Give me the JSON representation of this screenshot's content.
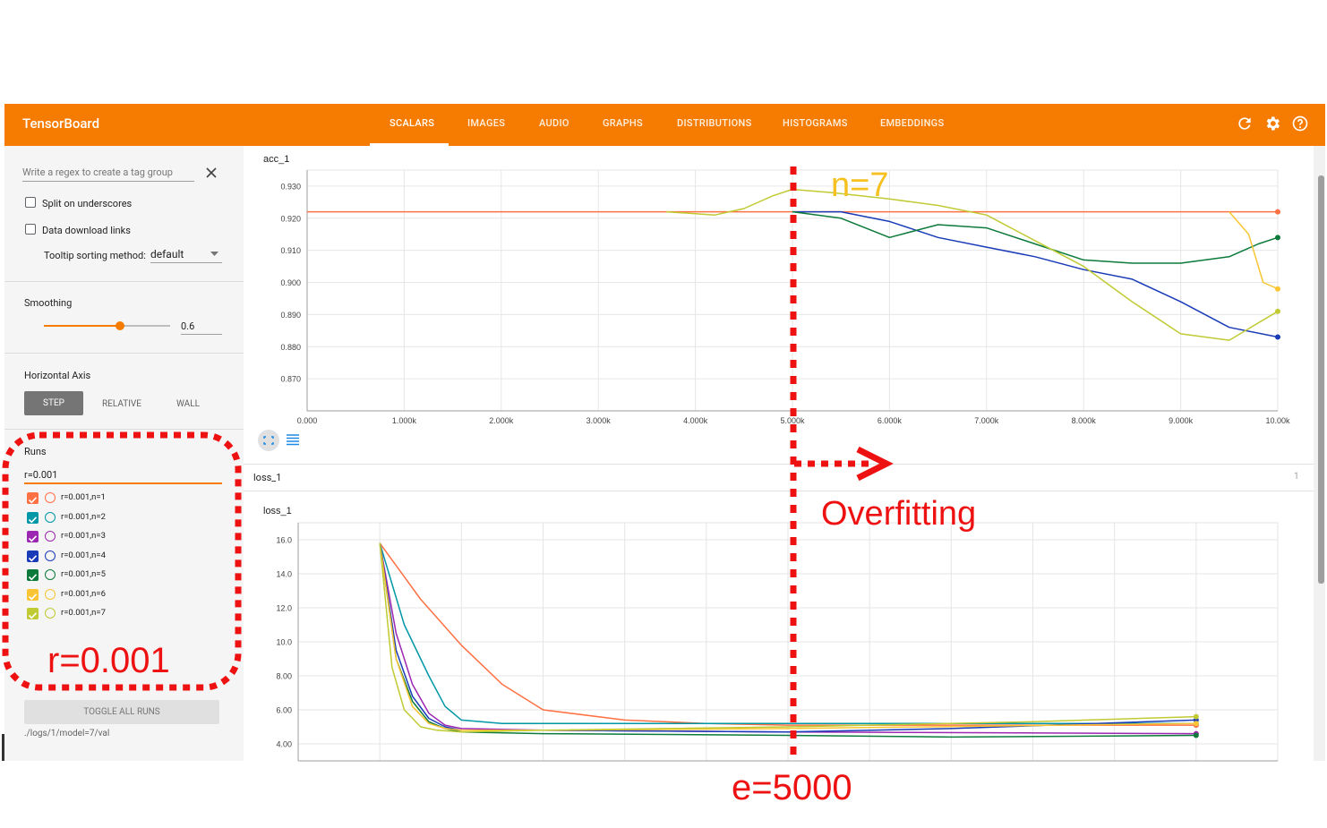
{
  "app": {
    "title": "TensorBoard"
  },
  "tabs": [
    {
      "label": "SCALARS"
    },
    {
      "label": "IMAGES"
    },
    {
      "label": "AUDIO"
    },
    {
      "label": "GRAPHS"
    },
    {
      "label": "DISTRIBUTIONS"
    },
    {
      "label": "HISTOGRAMS"
    },
    {
      "label": "EMBEDDINGS"
    }
  ],
  "active_tab": "SCALARS",
  "sidebar": {
    "regex_placeholder": "Write a regex to create a tag group",
    "split_label": "Split on underscores",
    "download_label": "Data download links",
    "tooltip_label": "Tooltip sorting method:",
    "tooltip_value": "default",
    "smoothing_label": "Smoothing",
    "smoothing_value": "0.6",
    "smoothing_fraction": 0.6,
    "haxis_label": "Horizontal Axis",
    "haxis_options": [
      "STEP",
      "RELATIVE",
      "WALL"
    ],
    "haxis_selected": "STEP",
    "runs_label": "Runs",
    "runs_filter": "r=0.001",
    "runs": [
      {
        "label": "r=0.001,n=1",
        "color": "#ff7043"
      },
      {
        "label": "r=0.001,n=2",
        "color": "#0097a7"
      },
      {
        "label": "r=0.001,n=3",
        "color": "#9c27b0"
      },
      {
        "label": "r=0.001,n=4",
        "color": "#1a3bb8"
      },
      {
        "label": "r=0.001,n=5",
        "color": "#0b7a3a"
      },
      {
        "label": "r=0.001,n=6",
        "color": "#f9c534"
      },
      {
        "label": "r=0.001,n=7",
        "color": "#c0ca33"
      }
    ],
    "toggle_all_label": "TOGGLE ALL RUNS",
    "log_path": "./logs/1/model=7/val"
  },
  "loss_group": {
    "label": "loss_1",
    "count": "1"
  },
  "annotations": {
    "n7": "n=7",
    "overfitting": "Overfitting",
    "r_label": "r=0.001",
    "e_label": "e=5000"
  },
  "chart_data": [
    {
      "type": "line",
      "title": "acc_1",
      "xlim": [
        0,
        10000
      ],
      "ylim": [
        0.86,
        0.935
      ],
      "x_ticks": [
        0,
        1000,
        2000,
        3000,
        4000,
        5000,
        6000,
        7000,
        8000,
        9000,
        10000
      ],
      "x_tick_labels": [
        "0.000",
        "1.000k",
        "2.000k",
        "3.000k",
        "4.000k",
        "5.000k",
        "6.000k",
        "7.000k",
        "8.000k",
        "9.000k",
        "10.00k"
      ],
      "y_ticks": [
        0.87,
        0.88,
        0.89,
        0.9,
        0.91,
        0.92,
        0.93
      ],
      "y_tick_labels": [
        "0.870",
        "0.880",
        "0.890",
        "0.900",
        "0.910",
        "0.920",
        "0.930"
      ],
      "grid": true,
      "series": [
        {
          "name": "r=0.001,n=1",
          "color": "#ff7043",
          "x": [
            0,
            10000
          ],
          "y": [
            0.922,
            0.922
          ]
        },
        {
          "name": "r=0.001,n=4",
          "color": "#1a3bb8",
          "x": [
            5000,
            5500,
            6000,
            6500,
            7000,
            7500,
            8000,
            8500,
            9000,
            9500,
            10000
          ],
          "y": [
            0.922,
            0.922,
            0.919,
            0.914,
            0.911,
            0.908,
            0.904,
            0.901,
            0.894,
            0.886,
            0.883
          ]
        },
        {
          "name": "r=0.001,n=5",
          "color": "#0b7a3a",
          "x": [
            5000,
            5500,
            6000,
            6500,
            7000,
            7500,
            8000,
            8500,
            9000,
            9500,
            9800,
            10000
          ],
          "y": [
            0.922,
            0.92,
            0.914,
            0.918,
            0.917,
            0.912,
            0.907,
            0.906,
            0.906,
            0.908,
            0.912,
            0.914
          ]
        },
        {
          "name": "r=0.001,n=6",
          "color": "#f9c534",
          "x": [
            9500,
            9700,
            9850,
            10000
          ],
          "y": [
            0.922,
            0.915,
            0.9,
            0.898
          ]
        },
        {
          "name": "r=0.001,n=7",
          "color": "#c0ca33",
          "x": [
            3700,
            4200,
            4500,
            4800,
            5000,
            5400,
            6000,
            6500,
            7000,
            7500,
            8000,
            8500,
            9000,
            9500,
            10000
          ],
          "y": [
            0.922,
            0.921,
            0.923,
            0.927,
            0.929,
            0.928,
            0.926,
            0.924,
            0.921,
            0.913,
            0.905,
            0.894,
            0.884,
            0.882,
            0.891
          ]
        }
      ]
    },
    {
      "type": "line",
      "title": "loss_1",
      "xlim": [
        -1000,
        11000
      ],
      "ylim": [
        3.0,
        17.0
      ],
      "y_ticks": [
        4,
        6,
        8,
        10,
        12,
        14,
        16
      ],
      "y_tick_labels": [
        "4.00",
        "6.00",
        "8.00",
        "10.0",
        "12.0",
        "14.0",
        "16.0"
      ],
      "grid": true,
      "series": [
        {
          "name": "r=0.001,n=1",
          "color": "#ff7043",
          "x": [
            0,
            500,
            1000,
            1500,
            2000,
            3000,
            4000,
            5000,
            10000
          ],
          "y": [
            15.8,
            12.5,
            9.8,
            7.5,
            6.0,
            5.4,
            5.2,
            5.1,
            5.1
          ]
        },
        {
          "name": "r=0.001,n=2",
          "color": "#0097a7",
          "x": [
            0,
            300,
            600,
            800,
            1000,
            1500,
            2000,
            5000,
            10000
          ],
          "y": [
            15.8,
            11.0,
            8.0,
            6.2,
            5.4,
            5.2,
            5.2,
            5.2,
            5.2
          ]
        },
        {
          "name": "r=0.001,n=3",
          "color": "#9c27b0",
          "x": [
            0,
            200,
            400,
            600,
            800,
            1000,
            2000,
            5000,
            10000
          ],
          "y": [
            15.8,
            10.5,
            7.5,
            5.8,
            5.1,
            4.9,
            4.8,
            4.7,
            4.6
          ]
        },
        {
          "name": "r=0.001,n=4",
          "color": "#1a3bb8",
          "x": [
            0,
            200,
            400,
            600,
            800,
            1000,
            2000,
            5000,
            7000,
            10000
          ],
          "y": [
            15.8,
            9.5,
            6.8,
            5.5,
            5.0,
            4.8,
            4.8,
            4.7,
            4.9,
            5.4
          ]
        },
        {
          "name": "r=0.001,n=5",
          "color": "#0b7a3a",
          "x": [
            0,
            200,
            400,
            600,
            800,
            1000,
            2000,
            5000,
            7000,
            10000
          ],
          "y": [
            15.8,
            9.0,
            6.5,
            5.3,
            4.9,
            4.7,
            4.6,
            4.5,
            4.4,
            4.5
          ]
        },
        {
          "name": "r=0.001,n=6",
          "color": "#f9c534",
          "x": [
            0,
            200,
            400,
            600,
            800,
            1000,
            2000,
            5000,
            10000
          ],
          "y": [
            15.8,
            9.0,
            6.2,
            5.2,
            4.9,
            4.8,
            4.8,
            4.9,
            5.2
          ]
        },
        {
          "name": "r=0.001,n=7",
          "color": "#c0ca33",
          "x": [
            0,
            150,
            300,
            500,
            700,
            1000,
            2000,
            5000,
            8000,
            10000
          ],
          "y": [
            15.8,
            8.5,
            6.0,
            5.0,
            4.8,
            4.7,
            4.8,
            5.0,
            5.3,
            5.6
          ]
        }
      ]
    }
  ]
}
